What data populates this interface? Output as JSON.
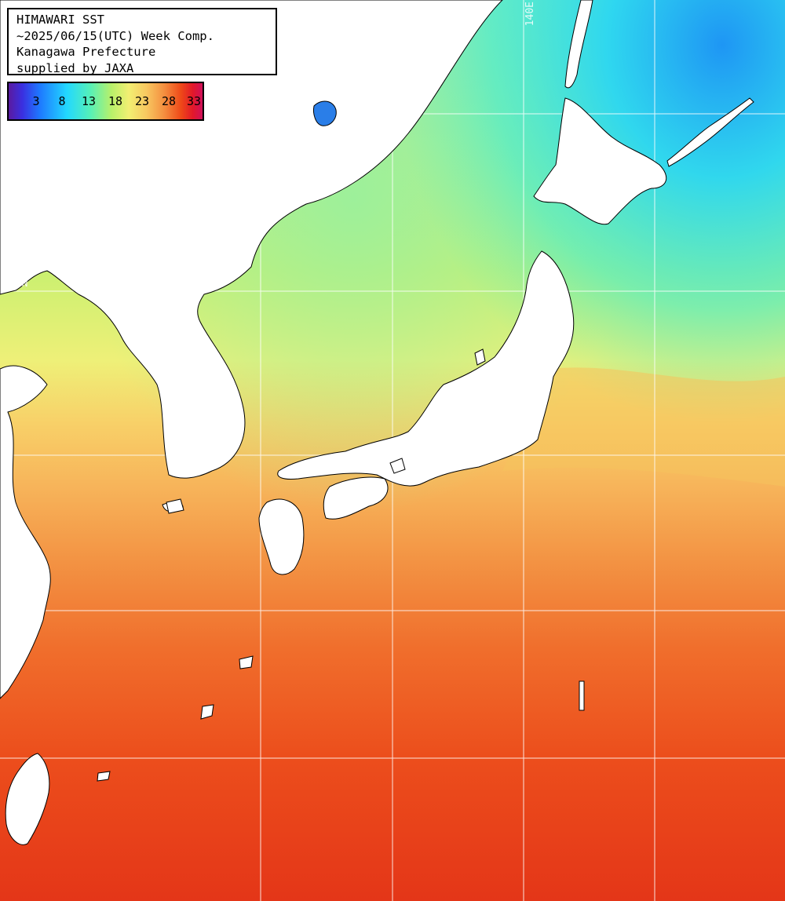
{
  "header": {
    "lines": [
      "HIMAWARI SST",
      "~2025/06/15(UTC) Week Comp.",
      "Kanagawa Prefecture",
      "supplied by JAXA"
    ]
  },
  "colorbar": {
    "ticks": [
      "3",
      "8",
      "13",
      "18",
      "23",
      "28",
      "33"
    ]
  },
  "grid_labels": {
    "longitude": "140E",
    "latitude": "40N"
  }
}
